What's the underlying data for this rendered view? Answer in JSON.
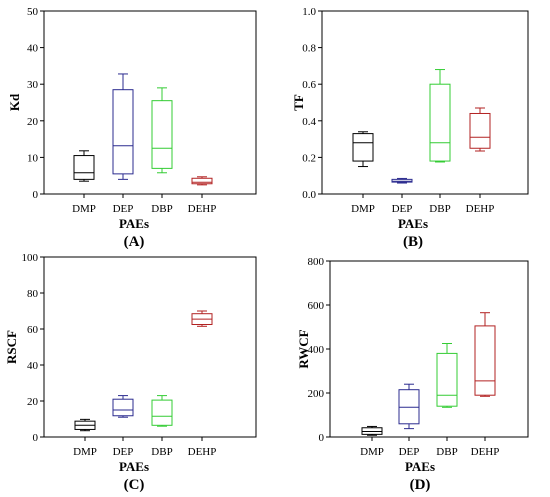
{
  "chart_data": [
    {
      "type": "box",
      "panel_label": "(A)",
      "ylabel": "Kd",
      "xlabel": "PAEs",
      "ylim": [
        0,
        50
      ],
      "yticks": [
        0,
        10,
        20,
        30,
        40,
        50
      ],
      "categories": [
        "DMP",
        "DEP",
        "DBP",
        "DEHP"
      ],
      "colors": [
        "#000000",
        "#2b2b8f",
        "#33cc33",
        "#b22222"
      ],
      "boxes": [
        {
          "min": 3.5,
          "q1": 4.0,
          "median": 5.8,
          "q3": 10.5,
          "max": 11.8
        },
        {
          "min": 4.0,
          "q1": 5.5,
          "median": 13.2,
          "q3": 28.5,
          "max": 32.8
        },
        {
          "min": 5.8,
          "q1": 7.0,
          "median": 12.5,
          "q3": 25.5,
          "max": 29.0
        },
        {
          "min": 2.5,
          "q1": 2.8,
          "median": 3.2,
          "q3": 4.3,
          "max": 4.7
        }
      ]
    },
    {
      "type": "box",
      "panel_label": "(B)",
      "ylabel": "TF",
      "xlabel": "PAEs",
      "ylim": [
        0,
        1.0
      ],
      "yticks": [
        "0.0",
        "0.2",
        "0.4",
        "0.6",
        "0.8",
        "1.0"
      ],
      "categories": [
        "DMP",
        "DEP",
        "DBP",
        "DEHP"
      ],
      "colors": [
        "#000000",
        "#2b2b8f",
        "#33cc33",
        "#b22222"
      ],
      "boxes": [
        {
          "min": 0.15,
          "q1": 0.18,
          "median": 0.28,
          "q3": 0.33,
          "max": 0.34
        },
        {
          "min": 0.06,
          "q1": 0.065,
          "median": 0.07,
          "q3": 0.08,
          "max": 0.085
        },
        {
          "min": 0.175,
          "q1": 0.18,
          "median": 0.28,
          "q3": 0.6,
          "max": 0.68
        },
        {
          "min": 0.235,
          "q1": 0.25,
          "median": 0.31,
          "q3": 0.44,
          "max": 0.47
        }
      ]
    },
    {
      "type": "box",
      "panel_label": "(C)",
      "ylabel": "RSCF",
      "xlabel": "PAEs",
      "ylim": [
        0,
        100
      ],
      "yticks": [
        0,
        20,
        40,
        60,
        80,
        100
      ],
      "categories": [
        "DMP",
        "DEP",
        "DBP",
        "DEHP"
      ],
      "colors": [
        "#000000",
        "#2b2b8f",
        "#33cc33",
        "#b22222"
      ],
      "boxes": [
        {
          "min": 3.5,
          "q1": 4.2,
          "median": 6.5,
          "q3": 8.8,
          "max": 9.8
        },
        {
          "min": 11.0,
          "q1": 11.8,
          "median": 15.0,
          "q3": 21.0,
          "max": 23.0
        },
        {
          "min": 6.0,
          "q1": 6.5,
          "median": 11.5,
          "q3": 20.5,
          "max": 23.0
        },
        {
          "min": 61.5,
          "q1": 62.5,
          "median": 65.5,
          "q3": 68.5,
          "max": 70.0
        }
      ]
    },
    {
      "type": "box",
      "panel_label": "(D)",
      "ylabel": "RWCF",
      "xlabel": "PAEs",
      "ylim": [
        0,
        800
      ],
      "yticks": [
        0,
        200,
        400,
        600,
        800
      ],
      "categories": [
        "DMP",
        "DEP",
        "DBP",
        "DEHP"
      ],
      "colors": [
        "#000000",
        "#2b2b8f",
        "#33cc33",
        "#b22222"
      ],
      "boxes": [
        {
          "min": 8,
          "q1": 12,
          "median": 25,
          "q3": 42,
          "max": 48
        },
        {
          "min": 38,
          "q1": 60,
          "median": 135,
          "q3": 215,
          "max": 240
        },
        {
          "min": 135,
          "q1": 140,
          "median": 190,
          "q3": 380,
          "max": 425
        },
        {
          "min": 185,
          "q1": 190,
          "median": 255,
          "q3": 505,
          "max": 565
        }
      ]
    }
  ]
}
